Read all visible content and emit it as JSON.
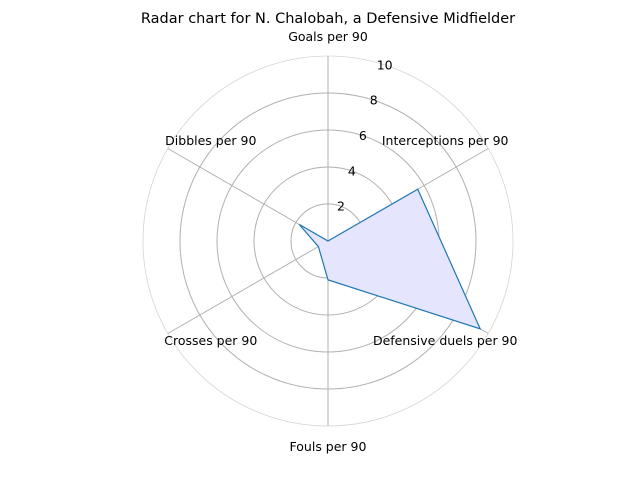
{
  "chart_data": {
    "type": "radar",
    "title": "Radar chart for N. Chalobah, a Defensive Midfielder",
    "axes": [
      "Goals per 90",
      "Interceptions per 90",
      "Defensive duels per 90",
      "Fouls per 90",
      "Crosses per 90",
      "Dibbles per 90"
    ],
    "values": [
      0.0,
      5.6,
      9.5,
      2.1,
      0.6,
      1.8
    ],
    "rlim": [
      0,
      10
    ],
    "rticks": [
      2,
      4,
      6,
      8,
      10
    ],
    "rtick_labels": [
      "2",
      "4",
      "6",
      "8",
      "10"
    ],
    "grid": true,
    "colors": {
      "line": "#1f77b4",
      "fill": "#e5e5fd",
      "grid": "#b0b0b0"
    }
  }
}
